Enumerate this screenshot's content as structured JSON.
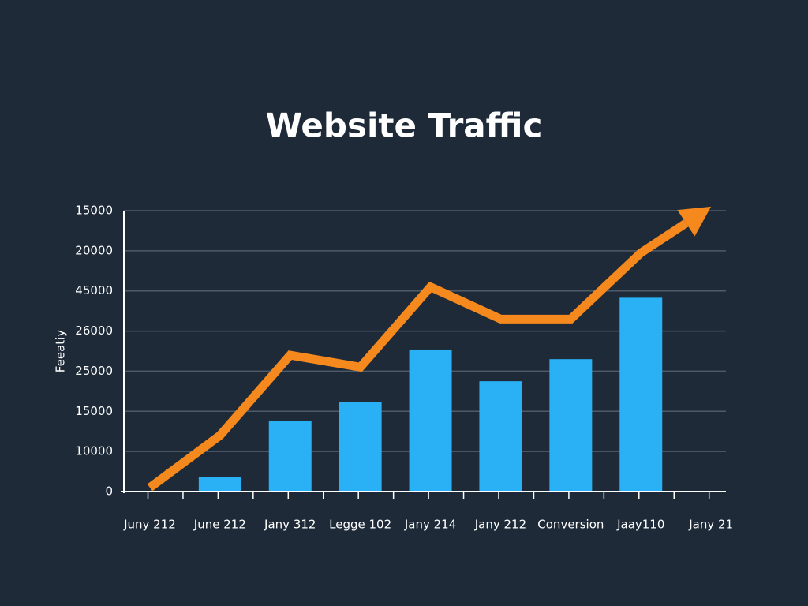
{
  "chart_data": {
    "type": "bar-line",
    "title": "Website Traffic",
    "y_label": "Feeatiy",
    "categories": [
      "Juny 212",
      "June 212",
      "Jany 312",
      "Legge 102",
      "Jany 214",
      "Jany 212",
      "Conversion",
      "Jaay110",
      "Jany 21"
    ],
    "series": [
      {
        "type": "bar",
        "color": "#29b0f5",
        "values": [
          null,
          0.37,
          1.77,
          2.24,
          3.54,
          2.75,
          3.3,
          4.83,
          null
        ]
      },
      {
        "type": "line",
        "color": "#f5891e",
        "values": [
          0.1,
          1.4,
          3.4,
          3.1,
          5.1,
          4.3,
          4.3,
          5.95,
          7.1
        ]
      }
    ],
    "ylim": [
      0,
      7
    ],
    "yticks": [
      0,
      {
        "value": 1,
        "label": "10000"
      },
      {
        "value": 2,
        "label": "15000"
      },
      {
        "value": 3,
        "label": "25000"
      },
      {
        "value": 4,
        "label": "26000"
      },
      {
        "value": 5,
        "label": "45000"
      },
      {
        "value": 6,
        "label": "20000"
      },
      {
        "value": 7,
        "label": "15000"
      }
    ],
    "grid": true
  }
}
